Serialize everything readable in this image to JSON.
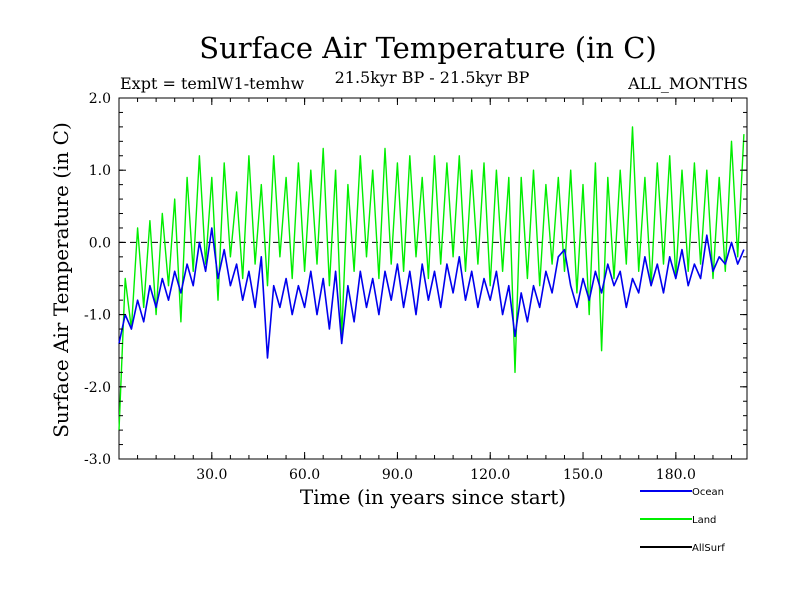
{
  "chart_data": {
    "type": "line",
    "title": "Surface Air Temperature (in C)",
    "subtitle": "21.5kyr BP - 21.5kyr BP",
    "left_note": "Expt = temlW1-temhw",
    "right_note": "ALL_MONTHS",
    "xlabel": "Time (in years since start)",
    "ylabel": "Surface Air Temperature (in C)",
    "xlim": [
      0,
      203
    ],
    "ylim": [
      -3.0,
      2.0
    ],
    "x_ticks": [
      30,
      60,
      90,
      120,
      150,
      180
    ],
    "x_tick_labels": [
      "30.0",
      "60.0",
      "90.0",
      "120.0",
      "150.0",
      "180.0"
    ],
    "y_ticks": [
      2.0,
      1.0,
      0.0,
      -1.0,
      -2.0,
      -3.0
    ],
    "y_tick_labels": [
      "2.0",
      "1.0",
      "0.0",
      "-1.0",
      "-2.0",
      "-3.0"
    ],
    "reference_line": {
      "y": 0.0,
      "style": "dashed"
    },
    "legend_position": "bottom-right",
    "series": [
      {
        "name": "Land",
        "color": "#00ee00",
        "x": [
          0,
          2,
          4,
          6,
          8,
          10,
          12,
          14,
          16,
          18,
          20,
          22,
          24,
          26,
          28,
          30,
          32,
          34,
          36,
          38,
          40,
          42,
          44,
          46,
          48,
          50,
          52,
          54,
          56,
          58,
          60,
          62,
          64,
          66,
          68,
          70,
          72,
          74,
          76,
          78,
          80,
          82,
          84,
          86,
          88,
          90,
          92,
          94,
          96,
          98,
          100,
          102,
          104,
          106,
          108,
          110,
          112,
          114,
          116,
          118,
          120,
          122,
          124,
          126,
          128,
          130,
          132,
          134,
          136,
          138,
          140,
          142,
          144,
          146,
          148,
          150,
          152,
          154,
          156,
          158,
          160,
          162,
          164,
          166,
          168,
          170,
          172,
          174,
          176,
          178,
          180,
          182,
          184,
          186,
          188,
          190,
          192,
          194,
          196,
          198,
          200,
          202
        ],
        "values": [
          -2.6,
          -0.5,
          -1.2,
          0.2,
          -0.9,
          0.3,
          -1.0,
          0.4,
          -0.6,
          0.6,
          -1.1,
          0.9,
          -0.4,
          1.2,
          -0.3,
          0.9,
          -0.8,
          1.1,
          -0.2,
          0.7,
          -0.5,
          1.2,
          -0.3,
          0.8,
          -0.6,
          1.2,
          -0.2,
          0.9,
          -0.5,
          1.1,
          -0.4,
          1.0,
          -0.3,
          1.3,
          -0.6,
          1.0,
          -1.3,
          0.8,
          -0.4,
          1.2,
          -0.2,
          1.0,
          -0.5,
          1.3,
          -0.3,
          1.1,
          -0.4,
          1.2,
          -0.2,
          0.9,
          -0.5,
          1.2,
          -0.3,
          1.1,
          -0.2,
          1.2,
          -0.4,
          1.0,
          -0.3,
          1.1,
          -0.6,
          1.0,
          -0.4,
          0.9,
          -1.8,
          0.9,
          -0.5,
          1.0,
          -0.6,
          0.8,
          -0.3,
          0.9,
          -0.4,
          1.0,
          -0.7,
          0.8,
          -1.0,
          1.1,
          -1.5,
          0.9,
          -0.5,
          1.0,
          -0.3,
          1.6,
          -0.4,
          0.9,
          -0.6,
          1.1,
          -0.3,
          1.2,
          -0.5,
          1.0,
          -0.4,
          1.1,
          -0.3,
          1.0,
          -0.5,
          0.9,
          -0.4,
          1.4,
          -0.2,
          1.5
        ]
      },
      {
        "name": "Ocean",
        "color": "#0000ee",
        "x": [
          0,
          2,
          4,
          6,
          8,
          10,
          12,
          14,
          16,
          18,
          20,
          22,
          24,
          26,
          28,
          30,
          32,
          34,
          36,
          38,
          40,
          42,
          44,
          46,
          48,
          50,
          52,
          54,
          56,
          58,
          60,
          62,
          64,
          66,
          68,
          70,
          72,
          74,
          76,
          78,
          80,
          82,
          84,
          86,
          88,
          90,
          92,
          94,
          96,
          98,
          100,
          102,
          104,
          106,
          108,
          110,
          112,
          114,
          116,
          118,
          120,
          122,
          124,
          126,
          128,
          130,
          132,
          134,
          136,
          138,
          140,
          142,
          144,
          146,
          148,
          150,
          152,
          154,
          156,
          158,
          160,
          162,
          164,
          166,
          168,
          170,
          172,
          174,
          176,
          178,
          180,
          182,
          184,
          186,
          188,
          190,
          192,
          194,
          196,
          198,
          200,
          202
        ],
        "values": [
          -1.4,
          -1.0,
          -1.2,
          -0.8,
          -1.1,
          -0.6,
          -0.9,
          -0.5,
          -0.8,
          -0.4,
          -0.7,
          -0.3,
          -0.6,
          0.0,
          -0.4,
          0.2,
          -0.5,
          -0.1,
          -0.6,
          -0.3,
          -0.8,
          -0.4,
          -0.9,
          -0.2,
          -1.6,
          -0.6,
          -0.9,
          -0.5,
          -1.0,
          -0.6,
          -0.9,
          -0.4,
          -1.0,
          -0.5,
          -1.2,
          -0.4,
          -1.4,
          -0.6,
          -1.1,
          -0.4,
          -0.9,
          -0.5,
          -1.0,
          -0.4,
          -0.8,
          -0.3,
          -0.9,
          -0.4,
          -1.0,
          -0.3,
          -0.8,
          -0.4,
          -0.9,
          -0.3,
          -0.7,
          -0.2,
          -0.8,
          -0.4,
          -0.9,
          -0.5,
          -0.8,
          -0.4,
          -1.0,
          -0.6,
          -1.3,
          -0.7,
          -1.1,
          -0.6,
          -0.9,
          -0.4,
          -0.7,
          -0.2,
          -0.1,
          -0.6,
          -0.9,
          -0.5,
          -0.8,
          -0.4,
          -0.7,
          -0.3,
          -0.6,
          -0.4,
          -0.9,
          -0.5,
          -0.7,
          -0.2,
          -0.6,
          -0.3,
          -0.7,
          -0.2,
          -0.5,
          -0.1,
          -0.6,
          -0.3,
          -0.5,
          0.1,
          -0.4,
          -0.2,
          -0.3,
          0.0,
          -0.3,
          -0.1
        ]
      },
      {
        "name": "AllSurf",
        "color": "#000000",
        "x": [],
        "values": []
      }
    ],
    "legend": [
      {
        "name": "Ocean",
        "color": "#0000ee"
      },
      {
        "name": "Land",
        "color": "#00ee00"
      },
      {
        "name": "AllSurf",
        "color": "#000000"
      }
    ]
  }
}
